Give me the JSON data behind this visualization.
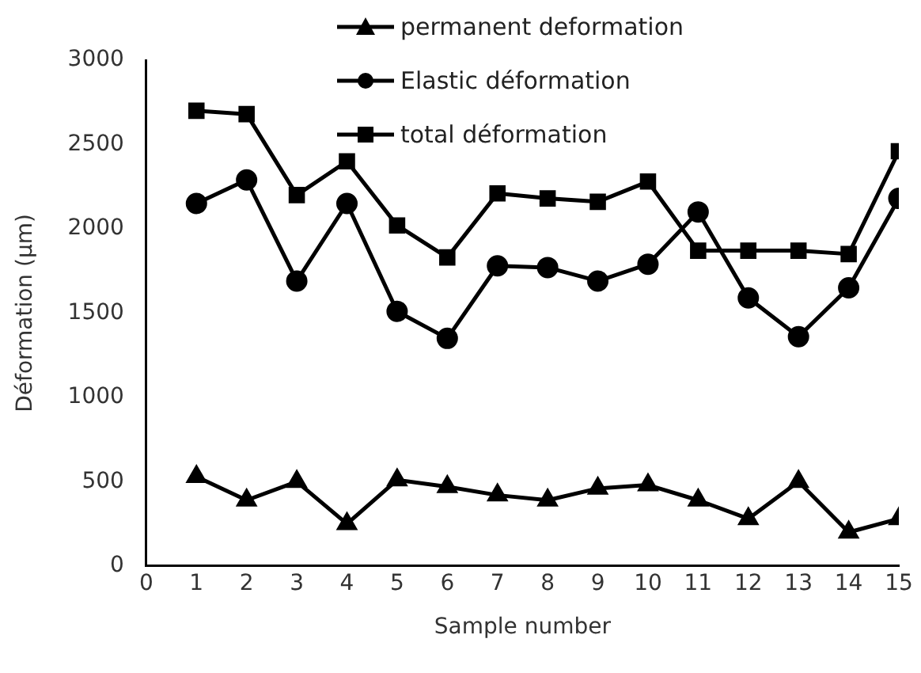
{
  "chart_data": {
    "type": "line",
    "xlabel": "Sample number",
    "ylabel": "Déformation (µm)",
    "x": [
      1,
      2,
      3,
      4,
      5,
      6,
      7,
      8,
      9,
      10,
      11,
      12,
      13,
      14,
      15
    ],
    "xlim": [
      0,
      15
    ],
    "xticks": [
      0,
      1,
      2,
      3,
      4,
      5,
      6,
      7,
      8,
      9,
      10,
      11,
      12,
      13,
      14,
      15
    ],
    "ylim": [
      0,
      3000
    ],
    "yticks": [
      0,
      500,
      1000,
      1500,
      2000,
      2500,
      3000
    ],
    "grid": false,
    "legend": "top right",
    "line_style": "solid",
    "series": [
      {
        "name": "permanent deformation",
        "color": "#000000",
        "marker": "triangle",
        "values": [
          530,
          390,
          500,
          250,
          510,
          470,
          420,
          390,
          460,
          480,
          390,
          280,
          500,
          200,
          280
        ]
      },
      {
        "name": "Elastic déformation",
        "color": "#000000",
        "marker": "circle",
        "values": [
          2150,
          2290,
          1690,
          2150,
          1510,
          1350,
          1780,
          1770,
          1690,
          1790,
          2100,
          1590,
          1360,
          1650,
          2180
        ]
      },
      {
        "name": "total déformation",
        "color": "#000000",
        "marker": "square",
        "values": [
          2700,
          2680,
          2200,
          2400,
          2020,
          1830,
          2210,
          2180,
          2160,
          2280,
          1870,
          1870,
          1870,
          1850,
          2460
        ]
      }
    ]
  }
}
